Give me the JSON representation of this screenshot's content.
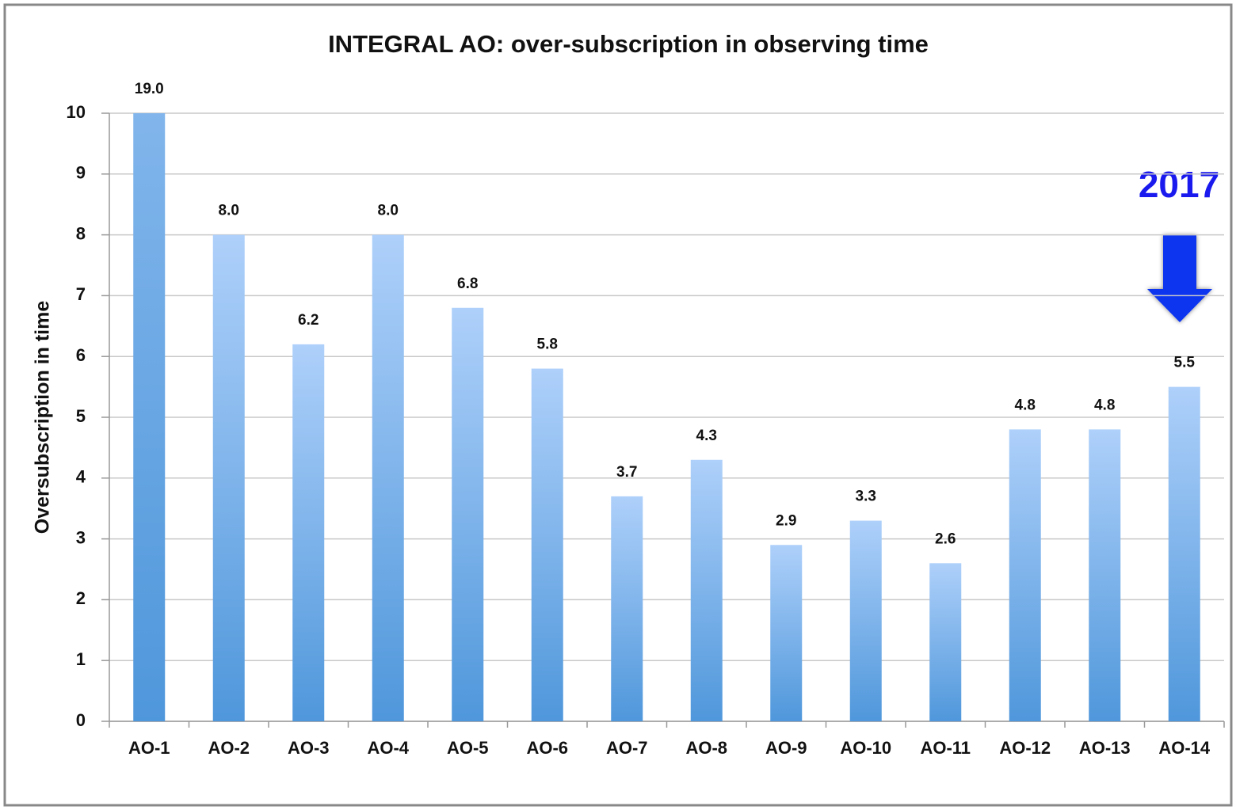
{
  "chart_data": {
    "type": "bar",
    "title": "INTEGRAL AO: over-subscription in observing time",
    "y_label": "Oversubscription in time",
    "annotation": "2017",
    "categories": [
      "AO-1",
      "AO-2",
      "AO-3",
      "AO-4",
      "AO-5",
      "AO-6",
      "AO-7",
      "AO-8",
      "AO-9",
      "AO-10",
      "AO-11",
      "AO-12",
      "AO-13",
      "AO-14"
    ],
    "values": [
      19,
      8,
      6.2,
      8,
      6.8,
      5.8,
      3.7,
      4.3,
      2.9,
      3.3,
      2.6,
      4.8,
      4.8,
      5.5
    ],
    "value_labels": [
      "19.0",
      "8.0",
      "6.2",
      "8.0",
      "6.8",
      "5.8",
      "3.7",
      "4.3",
      "2.9",
      "3.3",
      "2.6",
      "4.8",
      "4.8",
      "5.5"
    ],
    "color": "#4f97db",
    "ylim": [
      0,
      10
    ],
    "yticks": [
      0,
      1,
      2,
      3,
      4,
      5,
      6,
      7,
      8,
      9,
      10
    ],
    "grid": true
  }
}
